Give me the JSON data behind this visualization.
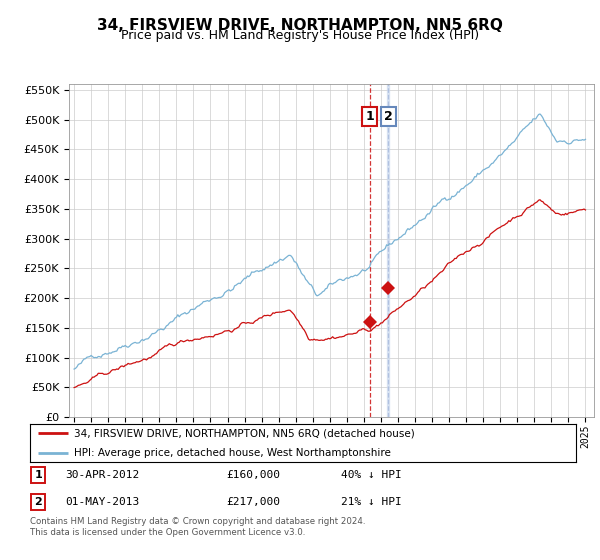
{
  "title": "34, FIRSVIEW DRIVE, NORTHAMPTON, NN5 6RQ",
  "subtitle": "Price paid vs. HM Land Registry's House Price Index (HPI)",
  "hpi_label": "HPI: Average price, detached house, West Northamptonshire",
  "price_label": "34, FIRSVIEW DRIVE, NORTHAMPTON, NN5 6RQ (detached house)",
  "hpi_color": "#7ab3d4",
  "price_color": "#cc1111",
  "vline1_color": "#cc1111",
  "vline2_color": "#aabbdd",
  "annotation1": {
    "label": "1",
    "date_str": "30-APR-2012",
    "price": "£160,000",
    "hpi_pct": "40% ↓ HPI",
    "x_year": 2012.33
  },
  "annotation2": {
    "label": "2",
    "date_str": "01-MAY-2013",
    "price": "£217,000",
    "hpi_pct": "21% ↓ HPI",
    "x_year": 2013.42
  },
  "sale1_y": 160000,
  "sale2_y": 217000,
  "ylim": [
    0,
    560000
  ],
  "ytick_step": 50000,
  "xlim_start": 1994.7,
  "xlim_end": 2025.5,
  "footer": "Contains HM Land Registry data © Crown copyright and database right 2024.\nThis data is licensed under the Open Government Licence v3.0.",
  "background_color": "#ffffff",
  "grid_color": "#cccccc",
  "title_fontsize": 11,
  "subtitle_fontsize": 9
}
